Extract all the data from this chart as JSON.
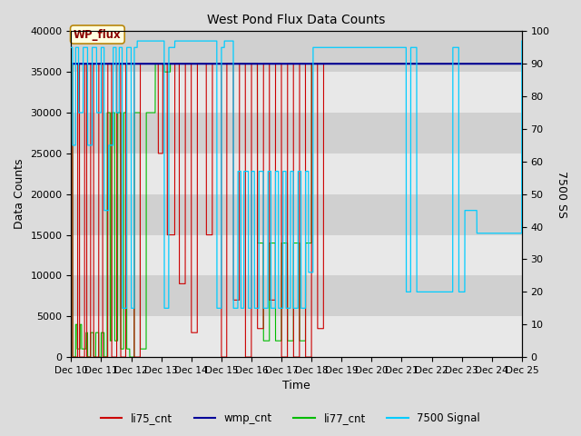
{
  "title": "West Pond Flux Data Counts",
  "xlabel": "Time",
  "ylabel_left": "Data Counts",
  "ylabel_right": "7500 SS",
  "annotation": "WP_flux",
  "ylim_left": [
    0,
    40000
  ],
  "ylim_right": [
    0,
    100
  ],
  "x_ticks": [
    10,
    11,
    12,
    13,
    14,
    15,
    16,
    17,
    18,
    19,
    20,
    21,
    22,
    23,
    24,
    25
  ],
  "x_tick_labels": [
    "Dec 10",
    "Dec 11",
    "Dec 12",
    "Dec 13",
    "Dec 14",
    "Dec 15",
    "Dec 16",
    "Dec 17",
    "Dec 18",
    "Dec 19",
    "Dec 20",
    "Dec 21",
    "Dec 22",
    "Dec 23",
    "Dec 24",
    "Dec 25"
  ],
  "fig_bg": "#dcdcdc",
  "plot_bg": "#dcdcdc",
  "li75_color": "#cc0000",
  "wmp_color": "#000099",
  "li77_color": "#00bb00",
  "signal_color": "#00ccff",
  "legend_entries": [
    "li75_cnt",
    "wmp_cnt",
    "li77_cnt",
    "7500 Signal"
  ],
  "yticks_left": [
    0,
    5000,
    10000,
    15000,
    20000,
    25000,
    30000,
    35000,
    40000
  ],
  "yticks_right": [
    0,
    10,
    20,
    30,
    40,
    50,
    60,
    70,
    80,
    90,
    100
  ],
  "grid_color": "#c8c8c8",
  "band_color_light": "#e8e8e8",
  "band_color_dark": "#d0d0d0",
  "annot_facecolor": "lightyellow",
  "annot_edgecolor": "#b8860b",
  "annot_textcolor": "#8b0000"
}
